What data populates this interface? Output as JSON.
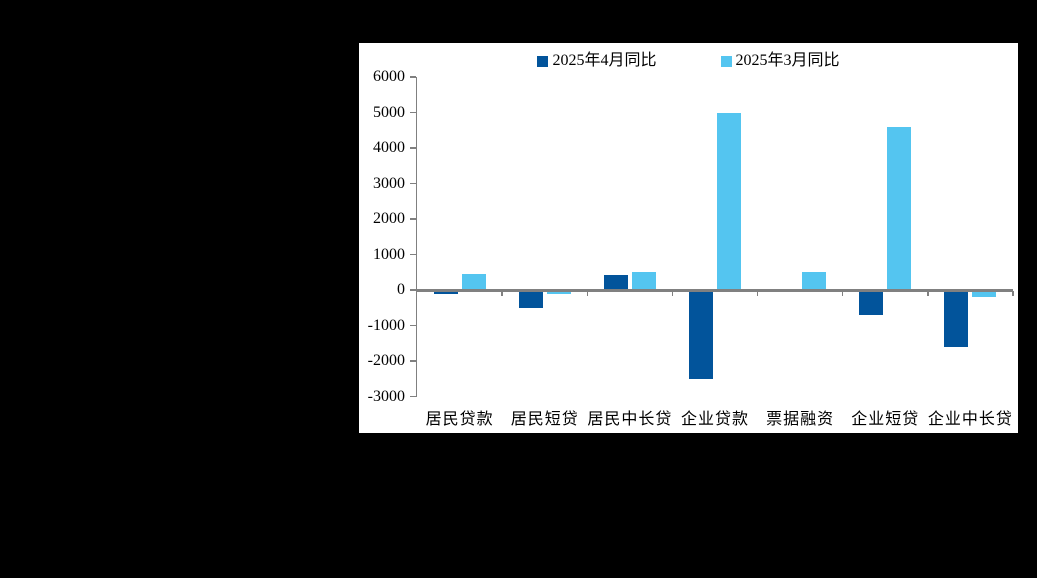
{
  "background_color": "#000000",
  "panel_color": "#ffffff",
  "chart_data": {
    "type": "bar",
    "title": "",
    "xlabel": "",
    "ylabel": "",
    "categories": [
      "居民贷款",
      "居民短贷",
      "居民中长贷",
      "企业贷款",
      "票据融资",
      "企业短贷",
      "企业中长贷"
    ],
    "series": [
      {
        "name": "2025年4月同比",
        "color": "#02549B",
        "values": [
          -100,
          -500,
          420,
          -2500,
          -50,
          -700,
          -1600
        ]
      },
      {
        "name": "2025年3月同比",
        "color": "#54C5F0",
        "values": [
          450,
          -100,
          520,
          5000,
          520,
          4600,
          -200
        ]
      }
    ],
    "ylim": [
      -3000,
      6000
    ],
    "ytick_step": 1000,
    "ytick_labels": [
      "6000",
      "5000",
      "4000",
      "3000",
      "2000",
      "1000",
      "0",
      "-1000",
      "-2000",
      "-3000"
    ],
    "axis_color": "#808080",
    "text_color": "#000000",
    "grid": false,
    "legend_position": "top"
  }
}
